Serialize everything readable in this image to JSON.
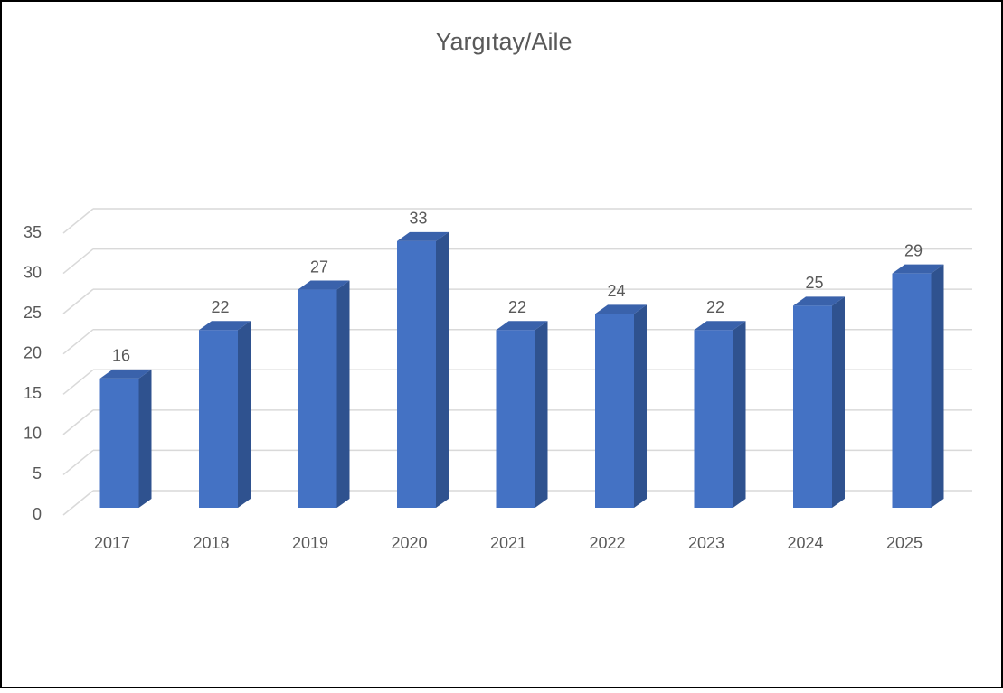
{
  "chart_data": {
    "type": "bar3d",
    "title": "Yargıtay/Aile",
    "categories": [
      "2017",
      "2018",
      "2019",
      "2020",
      "2021",
      "2022",
      "2023",
      "2024",
      "2025"
    ],
    "values": [
      16,
      22,
      27,
      33,
      22,
      24,
      22,
      25,
      29
    ],
    "color": "#4472c4",
    "ylim": [
      0,
      35
    ],
    "yticks": [
      0,
      5,
      10,
      15,
      20,
      25,
      30,
      35
    ],
    "grid": true
  }
}
